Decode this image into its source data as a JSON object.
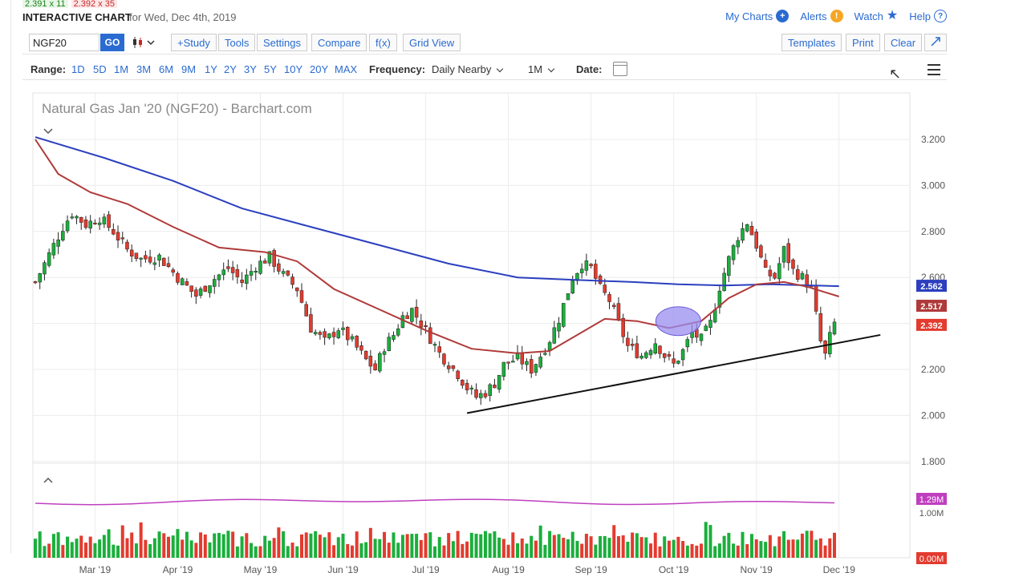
{
  "quote_strip": {
    "bid": "2.391 x 11",
    "ask": "2.392 x 35"
  },
  "header": {
    "title": "INTERACTIVE CHART",
    "date_text": "for Wed, Dec 4th, 2019",
    "links": {
      "my_charts": "My Charts",
      "alerts": "Alerts",
      "watch": "Watch",
      "help": "Help"
    },
    "icons": {
      "my_charts": "plus-circle-icon",
      "alerts": "alert-icon",
      "watch": "star-icon",
      "help": "help-icon"
    }
  },
  "toolbar": {
    "symbol_value": "NGF20",
    "go_label": "GO",
    "study_label": "+Study",
    "tools_label": "Tools",
    "settings_label": "Settings",
    "compare_label": "Compare",
    "fx_label": "f(x)",
    "gridview_label": "Grid View",
    "templates_label": "Templates",
    "print_label": "Print",
    "clear_label": "Clear",
    "expand_icon": "expand-icon",
    "chart_type_icon": "candlestick-icon"
  },
  "range_bar": {
    "range_label": "Range:",
    "ranges": [
      "1D",
      "5D",
      "1M",
      "3M",
      "6M",
      "9M",
      "1Y",
      "2Y",
      "3Y",
      "5Y",
      "10Y",
      "20Y",
      "MAX"
    ],
    "frequency_label": "Frequency:",
    "frequency_value": "Daily Nearby",
    "interval_value": "1M",
    "date_label": "Date:",
    "calendar_icon": "calendar-icon",
    "menu_icon": "hamburger-menu-icon"
  },
  "chart_data": {
    "type": "candlestick",
    "title": "Natural Gas Jan '20 (NGF20) - Barchart.com",
    "x_tick_labels": [
      "Mar '19",
      "Apr '19",
      "May '19",
      "Jun '19",
      "Jul '19",
      "Aug '19",
      "Sep '19",
      "Oct '19",
      "Nov '19",
      "Dec '19"
    ],
    "y_tick_labels": [
      "3.200",
      "3.000",
      "2.800",
      "2.600",
      "2.400",
      "2.200",
      "2.000",
      "1.800"
    ],
    "ylim": [
      1.8,
      3.3
    ],
    "price_path": [
      [
        0,
        2.58
      ],
      [
        3,
        2.7
      ],
      [
        6,
        2.82
      ],
      [
        8,
        2.88
      ],
      [
        11,
        2.83
      ],
      [
        14,
        2.86
      ],
      [
        17,
        2.8
      ],
      [
        20,
        2.72
      ],
      [
        23,
        2.68
      ],
      [
        27,
        2.69
      ],
      [
        31,
        2.6
      ],
      [
        35,
        2.52
      ],
      [
        38,
        2.58
      ],
      [
        42,
        2.64
      ],
      [
        45,
        2.58
      ],
      [
        48,
        2.65
      ],
      [
        51,
        2.69
      ],
      [
        54,
        2.61
      ],
      [
        57,
        2.55
      ],
      [
        60,
        2.38
      ],
      [
        63,
        2.32
      ],
      [
        66,
        2.38
      ],
      [
        69,
        2.32
      ],
      [
        72,
        2.24
      ],
      [
        74,
        2.2
      ],
      [
        76,
        2.3
      ],
      [
        78,
        2.35
      ],
      [
        80,
        2.43
      ],
      [
        82,
        2.46
      ],
      [
        85,
        2.37
      ],
      [
        88,
        2.27
      ],
      [
        92,
        2.18
      ],
      [
        94,
        2.12
      ],
      [
        96,
        2.08
      ],
      [
        98,
        2.1
      ],
      [
        100,
        2.14
      ],
      [
        102,
        2.22
      ],
      [
        105,
        2.25
      ],
      [
        108,
        2.2
      ],
      [
        110,
        2.26
      ],
      [
        112,
        2.33
      ],
      [
        114,
        2.42
      ],
      [
        117,
        2.6
      ],
      [
        119,
        2.66
      ],
      [
        121,
        2.64
      ],
      [
        123,
        2.55
      ],
      [
        125,
        2.5
      ],
      [
        127,
        2.4
      ],
      [
        129,
        2.3
      ],
      [
        132,
        2.26
      ],
      [
        135,
        2.32
      ],
      [
        137,
        2.26
      ],
      [
        139,
        2.22
      ],
      [
        141,
        2.28
      ],
      [
        143,
        2.36
      ],
      [
        145,
        2.33
      ],
      [
        147,
        2.4
      ],
      [
        149,
        2.56
      ],
      [
        151,
        2.68
      ],
      [
        153,
        2.78
      ],
      [
        155,
        2.84
      ],
      [
        157,
        2.74
      ],
      [
        159,
        2.62
      ],
      [
        161,
        2.6
      ],
      [
        163,
        2.72
      ],
      [
        165,
        2.63
      ],
      [
        167,
        2.6
      ],
      [
        169,
        2.55
      ],
      [
        171,
        2.32
      ],
      [
        172,
        2.26
      ],
      [
        173,
        2.34
      ],
      [
        174,
        2.4
      ],
      [
        175,
        2.39
      ]
    ],
    "moving_average_50": [
      [
        0,
        3.2
      ],
      [
        5,
        3.05
      ],
      [
        12,
        2.97
      ],
      [
        20,
        2.92
      ],
      [
        30,
        2.82
      ],
      [
        40,
        2.73
      ],
      [
        50,
        2.71
      ],
      [
        57,
        2.67
      ],
      [
        65,
        2.55
      ],
      [
        75,
        2.46
      ],
      [
        85,
        2.37
      ],
      [
        95,
        2.29
      ],
      [
        105,
        2.27
      ],
      [
        112,
        2.28
      ],
      [
        118,
        2.35
      ],
      [
        124,
        2.42
      ],
      [
        131,
        2.41
      ],
      [
        138,
        2.38
      ],
      [
        145,
        2.41
      ],
      [
        151,
        2.51
      ],
      [
        157,
        2.57
      ],
      [
        163,
        2.58
      ],
      [
        168,
        2.56
      ],
      [
        175,
        2.517
      ]
    ],
    "moving_average_200": [
      [
        0,
        3.21
      ],
      [
        15,
        3.12
      ],
      [
        30,
        3.02
      ],
      [
        45,
        2.9
      ],
      [
        60,
        2.82
      ],
      [
        75,
        2.74
      ],
      [
        90,
        2.66
      ],
      [
        105,
        2.6
      ],
      [
        117,
        2.59
      ],
      [
        130,
        2.58
      ],
      [
        140,
        2.57
      ],
      [
        150,
        2.565
      ],
      [
        160,
        2.57
      ],
      [
        175,
        2.562
      ]
    ],
    "trendline": [
      [
        94,
        2.01
      ],
      [
        184,
        2.35
      ]
    ],
    "highlight_ellipse_center": [
      140,
      2.41
    ],
    "last_price_labels": [
      "2.562",
      "2.517",
      "2.392"
    ],
    "volume_labels": [
      "1.29M",
      "1.00M",
      "0.00M"
    ],
    "volume_count": 175,
    "colors": {
      "up": "#1aaf3c",
      "down": "#e33b2e",
      "ma50": "#b03a3a",
      "ma200": "#2b3fbf",
      "volume_ma": "#bf3fbf",
      "ellipse": "#9a8ef0"
    }
  }
}
